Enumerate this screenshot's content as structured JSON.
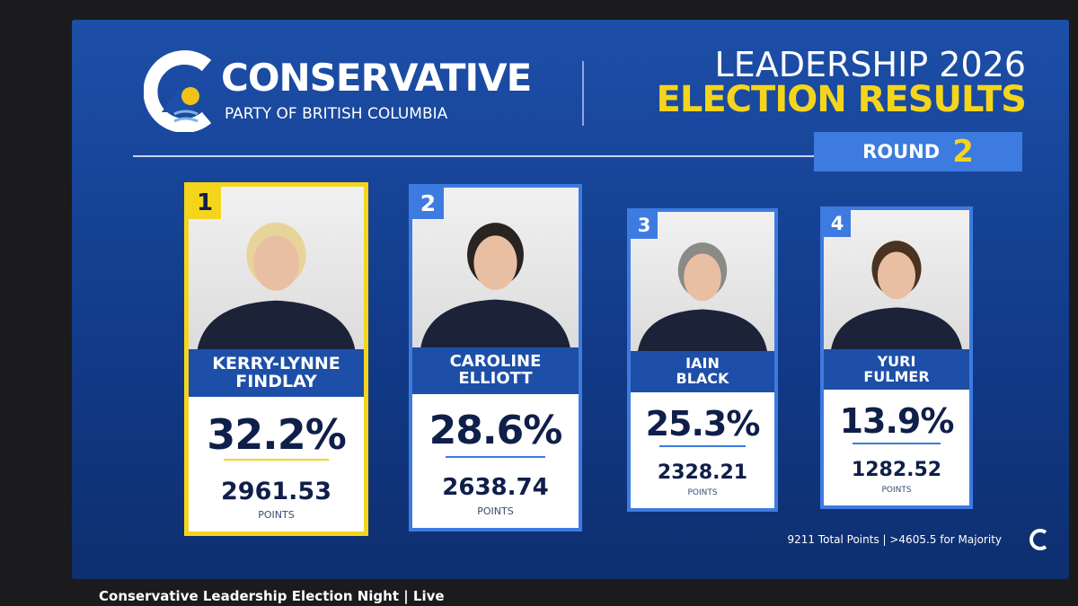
{
  "header": {
    "logo_name": "CONSERVATIVE",
    "logo_sub": "PARTY OF BRITISH COLUMBIA",
    "title_line1": "LEADERSHIP 2026",
    "title_line2": "ELECTION RESULTS",
    "round_label": "ROUND",
    "round_number": "2"
  },
  "candidates": [
    {
      "rank": "1",
      "name_lines": [
        "KERRY-LYNNE",
        "FINDLAY"
      ],
      "percent": "32.2%",
      "points": "2961.53",
      "points_label": "POINTS"
    },
    {
      "rank": "2",
      "name_lines": [
        "CAROLINE",
        "ELLIOTT"
      ],
      "percent": "28.6%",
      "points": "2638.74",
      "points_label": "POINTS"
    },
    {
      "rank": "3",
      "name_lines": [
        "IAIN",
        "BLACK"
      ],
      "percent": "25.3%",
      "points": "2328.21",
      "points_label": "POINTS"
    },
    {
      "rank": "4",
      "name_lines": [
        "YURI",
        "FULMER"
      ],
      "percent": "13.9%",
      "points": "1282.52",
      "points_label": "POINTS"
    }
  ],
  "footer_note": "9211 Total Points | >4605.5 for Majority",
  "video_title": "Conservative Leadership Election Night | Live"
}
